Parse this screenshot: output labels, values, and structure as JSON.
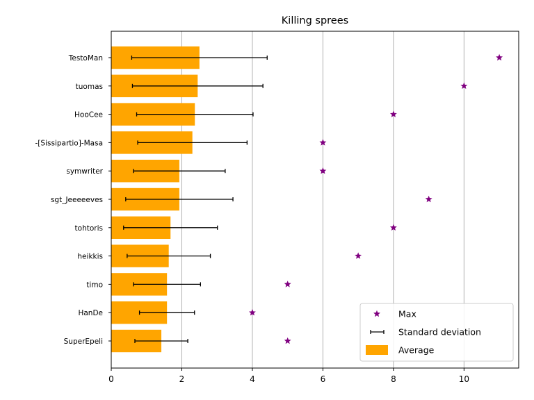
{
  "chart_data": {
    "type": "bar",
    "orientation": "horizontal",
    "title": "Killing sprees",
    "xlabel": "",
    "ylabel": "",
    "xlim": [
      0,
      11.55
    ],
    "xticks": [
      0,
      2,
      4,
      6,
      8,
      10
    ],
    "grid": "x",
    "legend_position": "lower-right",
    "colors": {
      "bar": "#ffa500",
      "max_marker": "#800080",
      "errorbar": "#000000",
      "grid": "#b0b0b0"
    },
    "categories": [
      "TestoMan",
      "tuomas",
      "HooCee",
      "-[Sissipartio]-Masa",
      "symwriter",
      "sgt_Jeeeeeves",
      "tohtoris",
      "heikkis",
      "timo",
      "HanDe",
      "SuperEpeli"
    ],
    "series": [
      {
        "name": "Average",
        "values": [
          2.5,
          2.45,
          2.37,
          2.3,
          1.93,
          1.93,
          1.68,
          1.63,
          1.58,
          1.58,
          1.42
        ]
      },
      {
        "name": "Standard deviation",
        "values": [
          1.92,
          1.85,
          1.65,
          1.55,
          1.3,
          1.52,
          1.33,
          1.18,
          0.95,
          0.78,
          0.75
        ]
      },
      {
        "name": "Max",
        "values": [
          11,
          10,
          8,
          6,
          6,
          9,
          8,
          7,
          5,
          4,
          5
        ]
      }
    ]
  }
}
